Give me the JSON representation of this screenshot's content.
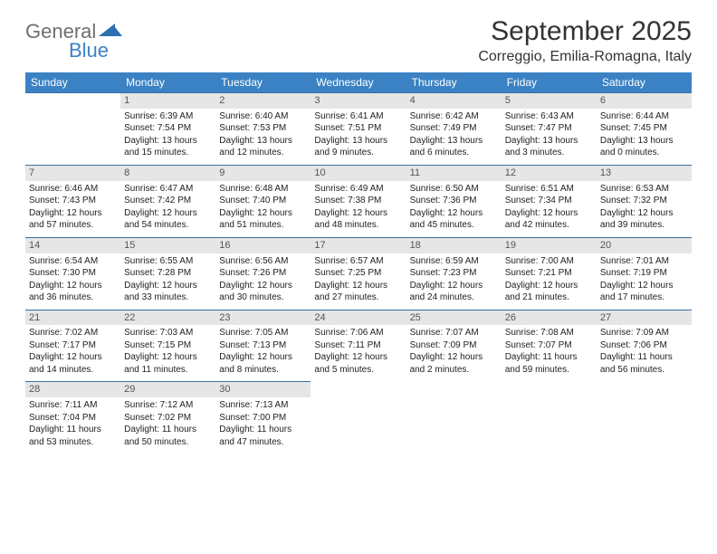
{
  "logo": {
    "text1": "General",
    "text2": "Blue"
  },
  "title": "September 2025",
  "location": "Correggio, Emilia-Romagna, Italy",
  "colors": {
    "header_bg": "#3b82c4",
    "header_text": "#ffffff",
    "daynum_bg": "#e6e6e6",
    "border": "#3b6fa0",
    "logo_gray": "#6f6f6f",
    "logo_blue": "#3b82c4"
  },
  "weekdays": [
    "Sunday",
    "Monday",
    "Tuesday",
    "Wednesday",
    "Thursday",
    "Friday",
    "Saturday"
  ],
  "start_offset": 1,
  "days": [
    {
      "n": 1,
      "sunrise": "6:39 AM",
      "sunset": "7:54 PM",
      "dl": "13 hours and 15 minutes."
    },
    {
      "n": 2,
      "sunrise": "6:40 AM",
      "sunset": "7:53 PM",
      "dl": "13 hours and 12 minutes."
    },
    {
      "n": 3,
      "sunrise": "6:41 AM",
      "sunset": "7:51 PM",
      "dl": "13 hours and 9 minutes."
    },
    {
      "n": 4,
      "sunrise": "6:42 AM",
      "sunset": "7:49 PM",
      "dl": "13 hours and 6 minutes."
    },
    {
      "n": 5,
      "sunrise": "6:43 AM",
      "sunset": "7:47 PM",
      "dl": "13 hours and 3 minutes."
    },
    {
      "n": 6,
      "sunrise": "6:44 AM",
      "sunset": "7:45 PM",
      "dl": "13 hours and 0 minutes."
    },
    {
      "n": 7,
      "sunrise": "6:46 AM",
      "sunset": "7:43 PM",
      "dl": "12 hours and 57 minutes."
    },
    {
      "n": 8,
      "sunrise": "6:47 AM",
      "sunset": "7:42 PM",
      "dl": "12 hours and 54 minutes."
    },
    {
      "n": 9,
      "sunrise": "6:48 AM",
      "sunset": "7:40 PM",
      "dl": "12 hours and 51 minutes."
    },
    {
      "n": 10,
      "sunrise": "6:49 AM",
      "sunset": "7:38 PM",
      "dl": "12 hours and 48 minutes."
    },
    {
      "n": 11,
      "sunrise": "6:50 AM",
      "sunset": "7:36 PM",
      "dl": "12 hours and 45 minutes."
    },
    {
      "n": 12,
      "sunrise": "6:51 AM",
      "sunset": "7:34 PM",
      "dl": "12 hours and 42 minutes."
    },
    {
      "n": 13,
      "sunrise": "6:53 AM",
      "sunset": "7:32 PM",
      "dl": "12 hours and 39 minutes."
    },
    {
      "n": 14,
      "sunrise": "6:54 AM",
      "sunset": "7:30 PM",
      "dl": "12 hours and 36 minutes."
    },
    {
      "n": 15,
      "sunrise": "6:55 AM",
      "sunset": "7:28 PM",
      "dl": "12 hours and 33 minutes."
    },
    {
      "n": 16,
      "sunrise": "6:56 AM",
      "sunset": "7:26 PM",
      "dl": "12 hours and 30 minutes."
    },
    {
      "n": 17,
      "sunrise": "6:57 AM",
      "sunset": "7:25 PM",
      "dl": "12 hours and 27 minutes."
    },
    {
      "n": 18,
      "sunrise": "6:59 AM",
      "sunset": "7:23 PM",
      "dl": "12 hours and 24 minutes."
    },
    {
      "n": 19,
      "sunrise": "7:00 AM",
      "sunset": "7:21 PM",
      "dl": "12 hours and 21 minutes."
    },
    {
      "n": 20,
      "sunrise": "7:01 AM",
      "sunset": "7:19 PM",
      "dl": "12 hours and 17 minutes."
    },
    {
      "n": 21,
      "sunrise": "7:02 AM",
      "sunset": "7:17 PM",
      "dl": "12 hours and 14 minutes."
    },
    {
      "n": 22,
      "sunrise": "7:03 AM",
      "sunset": "7:15 PM",
      "dl": "12 hours and 11 minutes."
    },
    {
      "n": 23,
      "sunrise": "7:05 AM",
      "sunset": "7:13 PM",
      "dl": "12 hours and 8 minutes."
    },
    {
      "n": 24,
      "sunrise": "7:06 AM",
      "sunset": "7:11 PM",
      "dl": "12 hours and 5 minutes."
    },
    {
      "n": 25,
      "sunrise": "7:07 AM",
      "sunset": "7:09 PM",
      "dl": "12 hours and 2 minutes."
    },
    {
      "n": 26,
      "sunrise": "7:08 AM",
      "sunset": "7:07 PM",
      "dl": "11 hours and 59 minutes."
    },
    {
      "n": 27,
      "sunrise": "7:09 AM",
      "sunset": "7:06 PM",
      "dl": "11 hours and 56 minutes."
    },
    {
      "n": 28,
      "sunrise": "7:11 AM",
      "sunset": "7:04 PM",
      "dl": "11 hours and 53 minutes."
    },
    {
      "n": 29,
      "sunrise": "7:12 AM",
      "sunset": "7:02 PM",
      "dl": "11 hours and 50 minutes."
    },
    {
      "n": 30,
      "sunrise": "7:13 AM",
      "sunset": "7:00 PM",
      "dl": "11 hours and 47 minutes."
    }
  ],
  "labels": {
    "sunrise": "Sunrise:",
    "sunset": "Sunset:",
    "daylight": "Daylight:"
  }
}
